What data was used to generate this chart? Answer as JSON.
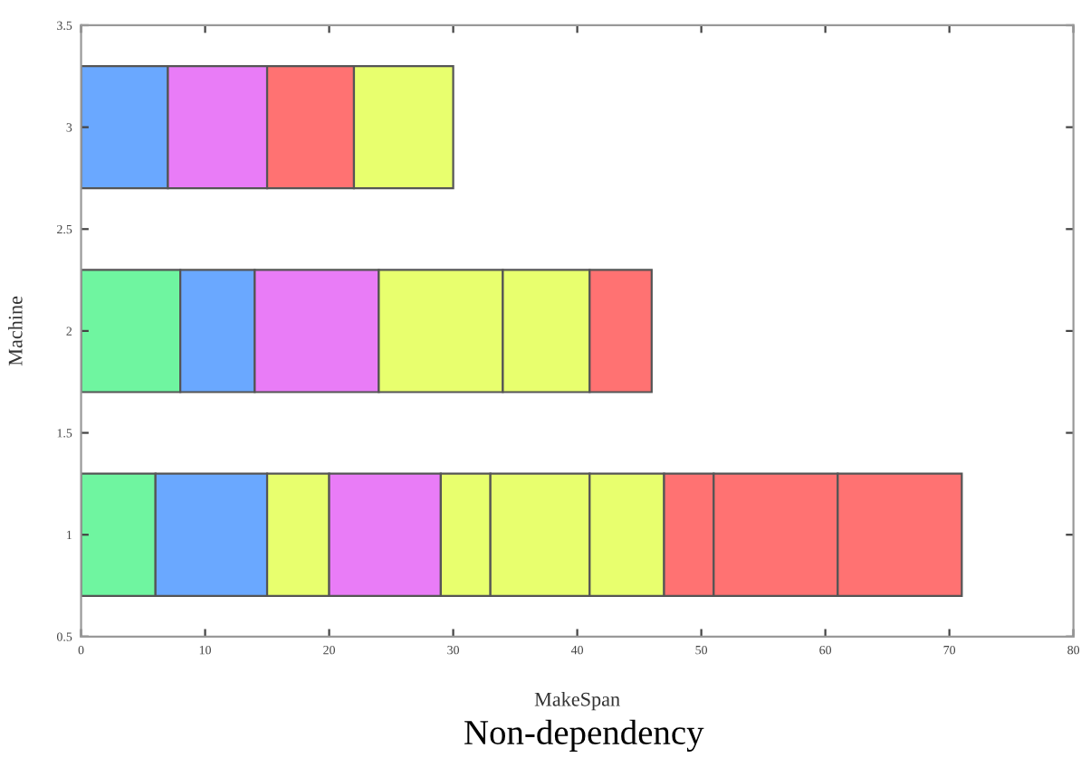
{
  "chart_data": {
    "type": "bar",
    "orientation": "horizontal",
    "title": "Non-dependency",
    "xlabel": "MakeSpan",
    "ylabel": "Machine",
    "series": [
      {
        "x": [
          1,
          2,
          3
        ],
        "base": [
          0,
          0,
          0
        ],
        "values": [
          6,
          8,
          7
        ],
        "colors": [
          "#6ff5a0",
          "#6ff5a0",
          "#6aa8ff"
        ]
      },
      {
        "x": [
          1,
          2,
          3
        ],
        "base": [
          6,
          8,
          7
        ],
        "values": [
          9,
          6,
          8
        ],
        "colors": [
          "#6aa8ff",
          "#6aa8ff",
          "#e97cf7"
        ]
      },
      {
        "x": [
          1,
          2,
          3
        ],
        "base": [
          15,
          14,
          15
        ],
        "values": [
          5,
          10,
          7
        ],
        "colors": [
          "#e8ff6e",
          "#e97cf7",
          "#ff7272"
        ]
      },
      {
        "x": [
          1,
          2,
          3
        ],
        "base": [
          20,
          24,
          22
        ],
        "values": [
          9,
          10,
          8
        ],
        "colors": [
          "#e97cf7",
          "#e8ff6e",
          "#e8ff6e"
        ]
      },
      {
        "x": [
          1,
          2
        ],
        "base": [
          29,
          34
        ],
        "values": [
          4,
          7
        ],
        "colors": [
          "#e8ff6e",
          "#e8ff6e"
        ]
      },
      {
        "x": [
          1,
          2
        ],
        "base": [
          33,
          41
        ],
        "values": [
          8,
          5
        ],
        "colors": [
          "#e8ff6e",
          "#ff7272"
        ]
      },
      {
        "x": [
          1
        ],
        "base": [
          41
        ],
        "values": [
          6
        ],
        "colors": [
          "#e8ff6e"
        ]
      },
      {
        "x": [
          1
        ],
        "base": [
          47
        ],
        "values": [
          4
        ],
        "colors": [
          "#ff7272"
        ]
      },
      {
        "x": [
          1
        ],
        "base": [
          51
        ],
        "values": [
          10
        ],
        "colors": [
          "#ff7272"
        ]
      },
      {
        "x": [
          1
        ],
        "base": [
          61
        ],
        "values": [
          10
        ],
        "colors": [
          "#ff7272"
        ]
      }
    ],
    "xlim": [
      0,
      80
    ],
    "xticks": [
      0,
      10,
      20,
      30,
      40,
      50,
      60,
      70,
      80
    ],
    "ylim": [
      0.5,
      3.5
    ],
    "yticks": [
      0.5,
      1,
      1.5,
      2,
      2.5,
      3,
      3.5
    ],
    "grid": false,
    "legend": false
  }
}
